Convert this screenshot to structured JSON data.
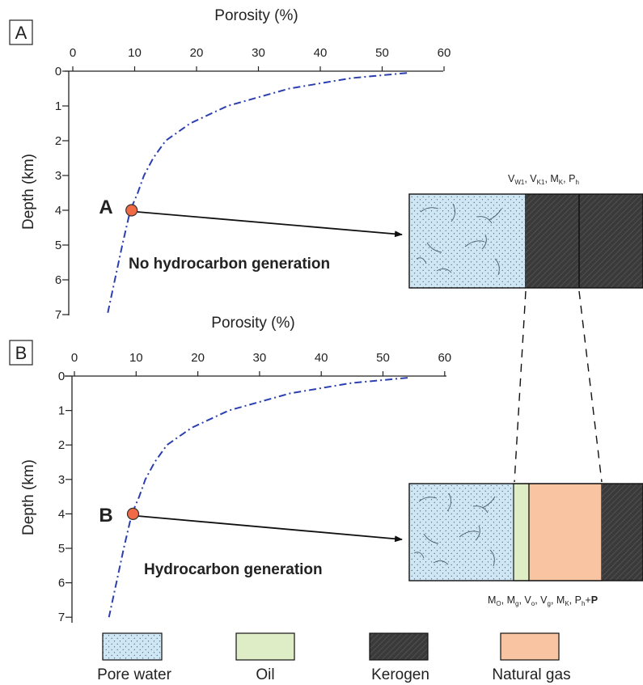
{
  "colors": {
    "pore_water": "#cfe6f4",
    "oil": "#dfedc6",
    "kerogen": "#3a3a3a",
    "natural_gas": "#f8c4a2",
    "curve": "#2b3fae",
    "point": "#ef6a45"
  },
  "panels": [
    {
      "label": "A",
      "x_axis_title": "Porosity (%)",
      "y_axis_title": "Depth (km)",
      "x_ticks": [
        "0",
        "10",
        "20",
        "30",
        "40",
        "50",
        "60"
      ],
      "y_ticks": [
        "0",
        "1",
        "2",
        "3",
        "4",
        "5",
        "6",
        "7"
      ],
      "point_label": "A",
      "caption": "No hydrocarbon generation",
      "box_formula": "V_W1, V_K1, M_K, P_h"
    },
    {
      "label": "B",
      "x_axis_title": "Porosity (%)",
      "y_axis_title": "Depth (km)",
      "x_ticks": [
        "0",
        "10",
        "20",
        "30",
        "40",
        "50",
        "60"
      ],
      "y_ticks": [
        "0",
        "1",
        "2",
        "3",
        "4",
        "5",
        "6",
        "7"
      ],
      "point_label": "B",
      "caption": "Hydrocarbon generation",
      "box_formula": "M_O, M_g, V_o, V_g, M_K, P_h+P"
    }
  ],
  "curve": {
    "porosity_percent": [
      54,
      45,
      35,
      25,
      19,
      15,
      13,
      11.5,
      10.5,
      9.3,
      8,
      6.8,
      5.6
    ],
    "depth_km": [
      0.05,
      0.2,
      0.5,
      1.0,
      1.5,
      2.0,
      2.5,
      3.0,
      3.5,
      4.0,
      5.0,
      6.0,
      7.0
    ]
  },
  "point_depth_km": 4.0,
  "point_porosity_percent": 9.5,
  "legend": [
    {
      "label": "Pore water",
      "key": "pore_water"
    },
    {
      "label": "Oil",
      "key": "oil"
    },
    {
      "label": "Kerogen",
      "key": "kerogen"
    },
    {
      "label": "Natural gas",
      "key": "natural_gas"
    }
  ]
}
